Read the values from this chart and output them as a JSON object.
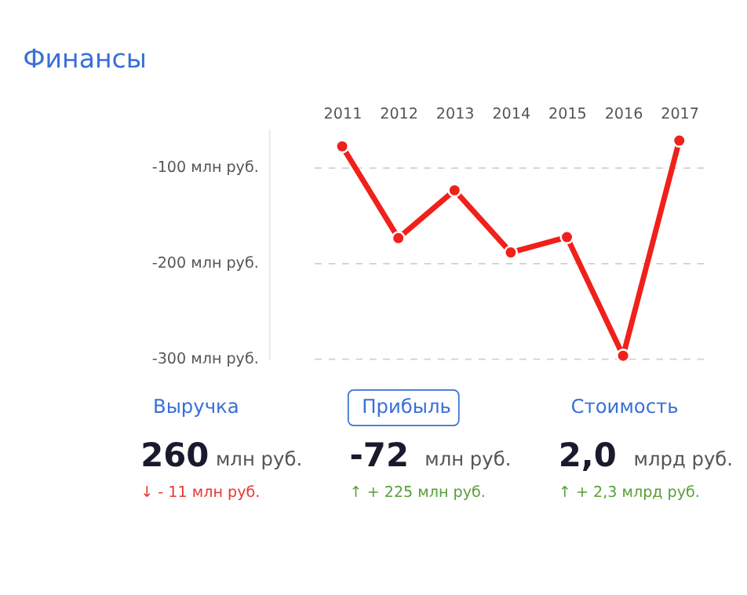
{
  "chart_data": [
    {
      "type": "line",
      "title": "Финансы",
      "categories": [
        "2011",
        "2012",
        "2013",
        "2014",
        "2015",
        "2016",
        "2017"
      ],
      "series": [
        {
          "color": "#f0201a",
          "values": [
            -78,
            -174,
            -124,
            -189,
            -173,
            -297,
            -72
          ]
        }
      ],
      "ylim": [
        -300,
        -60
      ],
      "yticks": [
        {
          "value": -100,
          "label": "-100 млн руб."
        },
        {
          "value": -200,
          "label": "-200 млн руб."
        },
        {
          "value": -300,
          "label": "-300 млн руб."
        }
      ],
      "grid": "y",
      "marker": "circle",
      "line_style": "solid",
      "legend": false
    },
    {
      "type": "other",
      "categories": [
        "Выручка",
        "Прибыль",
        "Стоимость"
      ],
      "annotations": [
        "260",
        "млн руб.",
        "↓ - 11 млн руб.",
        "-72",
        "млн руб.",
        "↑ + 225 млн руб.",
        "2,0",
        "млрд руб.",
        "↑ + 2,3 млрд руб."
      ]
    }
  ]
}
